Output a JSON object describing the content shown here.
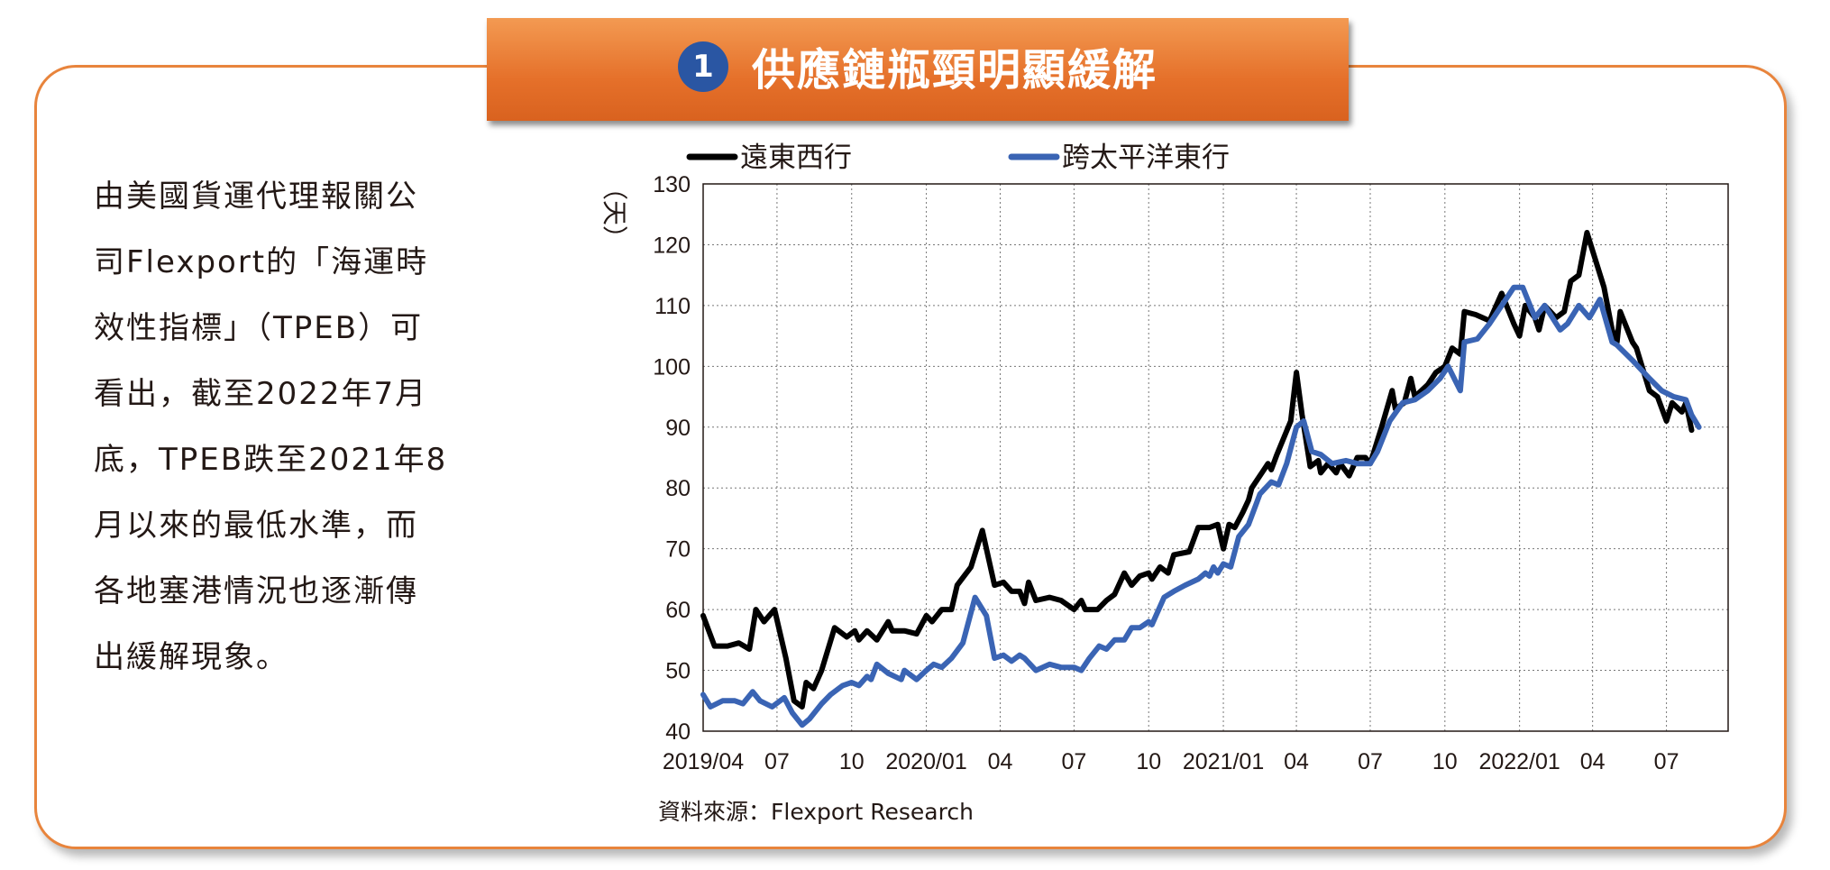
{
  "banner": {
    "number": "1",
    "title": "供應鏈瓶頸明顯緩解"
  },
  "side_text": [
    "由美國貨運代理報關公",
    "司Flexport的「海運時",
    "效性指標」（TPEB）可",
    "看出，截至2022年7月",
    "底，TPEB跌至2021年8",
    "月以來的最低水準，而",
    "各地塞港情況也逐漸傳",
    "出緩解現象。"
  ],
  "source": "資料來源：Flexport Research",
  "colors": {
    "accent": "#e8843c",
    "badge": "#2a56a3",
    "series_far_east_west": "#000000",
    "series_transpacific_east": "#3a64b4"
  },
  "chart_data": {
    "type": "line",
    "unit": "（天）",
    "ylim": [
      40,
      130
    ],
    "yticks": [
      "40",
      "50",
      "60",
      "70",
      "80",
      "90",
      "100",
      "110",
      "120",
      "130"
    ],
    "xlim": [
      "2019-04-01",
      "2022-09-15"
    ],
    "xticks": [
      {
        "date": "2019-04-01",
        "label": "2019/04"
      },
      {
        "date": "2019-07-01",
        "label": "07"
      },
      {
        "date": "2019-10-01",
        "label": "10"
      },
      {
        "date": "2020-01-01",
        "label": "2020/01"
      },
      {
        "date": "2020-04-01",
        "label": "04"
      },
      {
        "date": "2020-07-01",
        "label": "07"
      },
      {
        "date": "2020-10-01",
        "label": "10"
      },
      {
        "date": "2021-01-01",
        "label": "2021/01"
      },
      {
        "date": "2021-04-01",
        "label": "04"
      },
      {
        "date": "2021-07-01",
        "label": "07"
      },
      {
        "date": "2021-10-01",
        "label": "10"
      },
      {
        "date": "2022-01-01",
        "label": "2022/01"
      },
      {
        "date": "2022-04-01",
        "label": "04"
      },
      {
        "date": "2022-07-01",
        "label": "07"
      }
    ],
    "grid": true,
    "legend_position": "top",
    "series": [
      {
        "name": "遠東西行",
        "color": "#000000",
        "points": [
          [
            "2019-04-01",
            59
          ],
          [
            "2019-04-15",
            54
          ],
          [
            "2019-05-01",
            54
          ],
          [
            "2019-05-15",
            54.5
          ],
          [
            "2019-05-28",
            53.5
          ],
          [
            "2019-06-05",
            60
          ],
          [
            "2019-06-15",
            58
          ],
          [
            "2019-06-28",
            60
          ],
          [
            "2019-07-12",
            52
          ],
          [
            "2019-07-22",
            45
          ],
          [
            "2019-08-01",
            44
          ],
          [
            "2019-08-06",
            48
          ],
          [
            "2019-08-15",
            47
          ],
          [
            "2019-08-25",
            50
          ],
          [
            "2019-09-10",
            57
          ],
          [
            "2019-09-25",
            55.5
          ],
          [
            "2019-10-05",
            56.5
          ],
          [
            "2019-10-10",
            55
          ],
          [
            "2019-10-20",
            56.5
          ],
          [
            "2019-11-01",
            55
          ],
          [
            "2019-11-15",
            58
          ],
          [
            "2019-11-20",
            56.5
          ],
          [
            "2019-12-05",
            56.5
          ],
          [
            "2019-12-20",
            56
          ],
          [
            "2020-01-01",
            59
          ],
          [
            "2020-01-08",
            58
          ],
          [
            "2020-01-20",
            60
          ],
          [
            "2020-02-01",
            60
          ],
          [
            "2020-02-08",
            64
          ],
          [
            "2020-02-25",
            67
          ],
          [
            "2020-03-10",
            73
          ],
          [
            "2020-03-25",
            64
          ],
          [
            "2020-04-05",
            64.5
          ],
          [
            "2020-04-15",
            63
          ],
          [
            "2020-04-25",
            63
          ],
          [
            "2020-05-01",
            61
          ],
          [
            "2020-05-06",
            64.5
          ],
          [
            "2020-05-15",
            61.5
          ],
          [
            "2020-06-01",
            62
          ],
          [
            "2020-06-15",
            61.5
          ],
          [
            "2020-07-01",
            60
          ],
          [
            "2020-07-10",
            61.5
          ],
          [
            "2020-07-15",
            60
          ],
          [
            "2020-07-30",
            60
          ],
          [
            "2020-08-10",
            61.5
          ],
          [
            "2020-08-20",
            62.5
          ],
          [
            "2020-09-01",
            66
          ],
          [
            "2020-09-10",
            64
          ],
          [
            "2020-09-20",
            65.5
          ],
          [
            "2020-10-01",
            66
          ],
          [
            "2020-10-05",
            65
          ],
          [
            "2020-10-15",
            67
          ],
          [
            "2020-10-25",
            66
          ],
          [
            "2020-11-01",
            69
          ],
          [
            "2020-11-20",
            69.5
          ],
          [
            "2020-12-01",
            73.5
          ],
          [
            "2020-12-15",
            73.5
          ],
          [
            "2020-12-25",
            74
          ],
          [
            "2021-01-01",
            70
          ],
          [
            "2021-01-08",
            74
          ],
          [
            "2021-01-15",
            73.5
          ],
          [
            "2021-01-25",
            76
          ],
          [
            "2021-02-01",
            78
          ],
          [
            "2021-02-05",
            80
          ],
          [
            "2021-02-15",
            82
          ],
          [
            "2021-02-25",
            84
          ],
          [
            "2021-03-01",
            83
          ],
          [
            "2021-03-08",
            85.5
          ],
          [
            "2021-03-25",
            91
          ],
          [
            "2021-04-01",
            99
          ],
          [
            "2021-04-08",
            92
          ],
          [
            "2021-04-18",
            83.5
          ],
          [
            "2021-04-28",
            84.5
          ],
          [
            "2021-05-01",
            82.5
          ],
          [
            "2021-05-10",
            84
          ],
          [
            "2021-05-20",
            82.5
          ],
          [
            "2021-05-25",
            84
          ],
          [
            "2021-06-05",
            82
          ],
          [
            "2021-06-15",
            85
          ],
          [
            "2021-06-25",
            85
          ],
          [
            "2021-07-01",
            84
          ],
          [
            "2021-07-15",
            90
          ],
          [
            "2021-07-28",
            96
          ],
          [
            "2021-08-01",
            93
          ],
          [
            "2021-08-12",
            94
          ],
          [
            "2021-08-20",
            98
          ],
          [
            "2021-08-25",
            95
          ],
          [
            "2021-09-10",
            97
          ],
          [
            "2021-09-20",
            99
          ],
          [
            "2021-10-01",
            100
          ],
          [
            "2021-10-10",
            103
          ],
          [
            "2021-10-20",
            102
          ],
          [
            "2021-10-25",
            109
          ],
          [
            "2021-11-08",
            108.5
          ],
          [
            "2021-11-25",
            107.5
          ],
          [
            "2021-12-10",
            112
          ],
          [
            "2021-12-25",
            107
          ],
          [
            "2022-01-01",
            105
          ],
          [
            "2022-01-08",
            110
          ],
          [
            "2022-01-20",
            108
          ],
          [
            "2022-01-25",
            106
          ],
          [
            "2022-02-01",
            110
          ],
          [
            "2022-02-15",
            108
          ],
          [
            "2022-02-25",
            109
          ],
          [
            "2022-03-05",
            114
          ],
          [
            "2022-03-15",
            115
          ],
          [
            "2022-03-25",
            122
          ],
          [
            "2022-04-15",
            113
          ],
          [
            "2022-04-25",
            106
          ],
          [
            "2022-05-01",
            104
          ],
          [
            "2022-05-05",
            109
          ],
          [
            "2022-05-20",
            104
          ],
          [
            "2022-05-25",
            103
          ],
          [
            "2022-06-10",
            96
          ],
          [
            "2022-06-20",
            95
          ],
          [
            "2022-07-01",
            91
          ],
          [
            "2022-07-08",
            94
          ],
          [
            "2022-07-20",
            92.5
          ],
          [
            "2022-07-25",
            94
          ],
          [
            "2022-08-01",
            89.5
          ]
        ]
      },
      {
        "name": "跨太平洋東行",
        "color": "#3a64b4",
        "points": [
          [
            "2019-04-01",
            46
          ],
          [
            "2019-04-10",
            44
          ],
          [
            "2019-04-25",
            45
          ],
          [
            "2019-05-10",
            45
          ],
          [
            "2019-05-20",
            44.5
          ],
          [
            "2019-06-01",
            46.5
          ],
          [
            "2019-06-10",
            45
          ],
          [
            "2019-06-25",
            44
          ],
          [
            "2019-07-10",
            45.5
          ],
          [
            "2019-07-20",
            43
          ],
          [
            "2019-08-01",
            41
          ],
          [
            "2019-08-10",
            42
          ],
          [
            "2019-08-25",
            44.5
          ],
          [
            "2019-09-05",
            46
          ],
          [
            "2019-09-20",
            47.5
          ],
          [
            "2019-10-01",
            48
          ],
          [
            "2019-10-10",
            47.5
          ],
          [
            "2019-10-20",
            49
          ],
          [
            "2019-10-25",
            48.5
          ],
          [
            "2019-11-01",
            51
          ],
          [
            "2019-11-15",
            49.5
          ],
          [
            "2019-12-01",
            48.5
          ],
          [
            "2019-12-05",
            50
          ],
          [
            "2019-12-20",
            48.5
          ],
          [
            "2020-01-01",
            50
          ],
          [
            "2020-01-10",
            51
          ],
          [
            "2020-01-20",
            50.5
          ],
          [
            "2020-02-01",
            52
          ],
          [
            "2020-02-15",
            54.5
          ],
          [
            "2020-03-01",
            62
          ],
          [
            "2020-03-15",
            59
          ],
          [
            "2020-03-25",
            52
          ],
          [
            "2020-04-05",
            52.5
          ],
          [
            "2020-04-15",
            51.5
          ],
          [
            "2020-04-25",
            52.5
          ],
          [
            "2020-05-01",
            52
          ],
          [
            "2020-05-15",
            50
          ],
          [
            "2020-06-01",
            51
          ],
          [
            "2020-06-15",
            50.5
          ],
          [
            "2020-07-01",
            50.5
          ],
          [
            "2020-07-10",
            50
          ],
          [
            "2020-07-20",
            52
          ],
          [
            "2020-08-01",
            54
          ],
          [
            "2020-08-10",
            53.5
          ],
          [
            "2020-08-20",
            55
          ],
          [
            "2020-09-01",
            55
          ],
          [
            "2020-09-10",
            57
          ],
          [
            "2020-09-20",
            57
          ],
          [
            "2020-10-01",
            58
          ],
          [
            "2020-10-05",
            57.5
          ],
          [
            "2020-10-20",
            62
          ],
          [
            "2020-11-01",
            63
          ],
          [
            "2020-11-15",
            64
          ],
          [
            "2020-12-01",
            65
          ],
          [
            "2020-12-10",
            66
          ],
          [
            "2020-12-15",
            65.5
          ],
          [
            "2020-12-20",
            67
          ],
          [
            "2020-12-25",
            66
          ],
          [
            "2021-01-01",
            67.5
          ],
          [
            "2021-01-10",
            67
          ],
          [
            "2021-01-20",
            72
          ],
          [
            "2021-02-01",
            74
          ],
          [
            "2021-02-15",
            79
          ],
          [
            "2021-03-01",
            81
          ],
          [
            "2021-03-10",
            80.5
          ],
          [
            "2021-03-20",
            84
          ],
          [
            "2021-04-01",
            90
          ],
          [
            "2021-04-10",
            91
          ],
          [
            "2021-04-20",
            86
          ],
          [
            "2021-05-01",
            85.5
          ],
          [
            "2021-05-15",
            84
          ],
          [
            "2021-06-01",
            84.5
          ],
          [
            "2021-06-15",
            84
          ],
          [
            "2021-07-01",
            84
          ],
          [
            "2021-07-10",
            86
          ],
          [
            "2021-07-25",
            91
          ],
          [
            "2021-08-10",
            94
          ],
          [
            "2021-08-25",
            94.5
          ],
          [
            "2021-09-10",
            96
          ],
          [
            "2021-09-25",
            98
          ],
          [
            "2021-10-05",
            100
          ],
          [
            "2021-10-20",
            96
          ],
          [
            "2021-10-25",
            104
          ],
          [
            "2021-11-10",
            104.5
          ],
          [
            "2021-11-25",
            107
          ],
          [
            "2021-12-10",
            110
          ],
          [
            "2021-12-25",
            113
          ],
          [
            "2022-01-05",
            113
          ],
          [
            "2022-01-20",
            108
          ],
          [
            "2022-02-01",
            110
          ],
          [
            "2022-02-20",
            106
          ],
          [
            "2022-03-01",
            107
          ],
          [
            "2022-03-15",
            110
          ],
          [
            "2022-03-28",
            108
          ],
          [
            "2022-04-10",
            111
          ],
          [
            "2022-04-25",
            104
          ],
          [
            "2022-05-01",
            103.5
          ],
          [
            "2022-05-20",
            101
          ],
          [
            "2022-06-10",
            98
          ],
          [
            "2022-06-25",
            96
          ],
          [
            "2022-07-10",
            95
          ],
          [
            "2022-07-25",
            94.5
          ],
          [
            "2022-08-01",
            92
          ],
          [
            "2022-08-10",
            90
          ]
        ]
      }
    ]
  }
}
